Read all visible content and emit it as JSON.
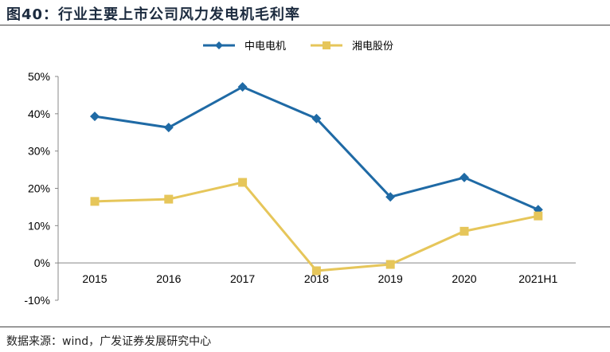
{
  "title": "图40：行业主要上市公司风力发电机毛利率",
  "source": "数据来源：wind，广发证券发展研究中心",
  "chart_data": {
    "type": "line",
    "title": "行业主要上市公司风力发电机毛利率",
    "categories": [
      "2015",
      "2016",
      "2017",
      "2018",
      "2019",
      "2020",
      "2021H1"
    ],
    "ylim": [
      -10,
      50
    ],
    "yticks": [
      50,
      40,
      30,
      20,
      10,
      0,
      -10
    ],
    "ytick_labels": [
      "50%",
      "40%",
      "30%",
      "20%",
      "10%",
      "0%",
      "-10%"
    ],
    "legend_position": "top-right",
    "series": [
      {
        "name": "中电电机",
        "color": "#1f6aa5",
        "marker": "diamond",
        "values": [
          39.3,
          36.3,
          47.2,
          38.7,
          17.7,
          22.9,
          14.3
        ]
      },
      {
        "name": "湘电股份",
        "color": "#e6c65a",
        "marker": "square",
        "values": [
          16.5,
          17.1,
          21.6,
          -2.1,
          -0.4,
          8.5,
          12.6
        ]
      }
    ]
  }
}
